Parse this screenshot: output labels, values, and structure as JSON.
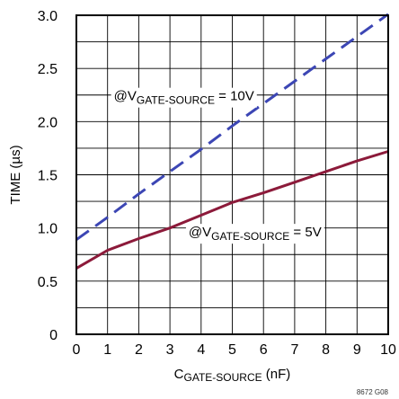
{
  "chart_data": {
    "type": "line",
    "xlabel": {
      "main": "C",
      "sub": "GATE-SOURCE",
      "unit": " (nF)"
    },
    "ylabel": "TIME (µs)",
    "xlim": [
      0,
      10
    ],
    "ylim": [
      0,
      3.0
    ],
    "grid": true,
    "x_ticks": [
      "0",
      "1",
      "2",
      "3",
      "4",
      "5",
      "6",
      "7",
      "8",
      "9",
      "10"
    ],
    "y_ticks": [
      "0",
      "0.5",
      "1.0",
      "1.5",
      "2.0",
      "2.5",
      "3.0"
    ],
    "series": [
      {
        "style": "dashed",
        "color": "#3c46b4",
        "x": [
          0,
          1,
          2,
          3,
          4,
          5,
          6,
          7,
          8,
          9,
          10
        ],
        "y": [
          0.89,
          1.1,
          1.32,
          1.53,
          1.74,
          1.96,
          2.17,
          2.38,
          2.59,
          2.8,
          3.01
        ]
      },
      {
        "style": "solid",
        "color": "#8c1a3a",
        "x": [
          0,
          1,
          2,
          3,
          4,
          5,
          6,
          7,
          8,
          9,
          10
        ],
        "y": [
          0.62,
          0.79,
          0.9,
          1.0,
          1.12,
          1.24,
          1.33,
          1.43,
          1.53,
          1.63,
          1.72
        ]
      }
    ],
    "annotations": [
      {
        "prefix": "@V",
        "sub": "GATE-SOURCE",
        "suffix": " = 10V",
        "x": 1.2,
        "y": 2.2
      },
      {
        "prefix": "@V",
        "sub": "GATE-SOURCE",
        "suffix": " = 5V",
        "x": 3.6,
        "y": 0.92
      }
    ],
    "figure_id": "8672 G08"
  }
}
